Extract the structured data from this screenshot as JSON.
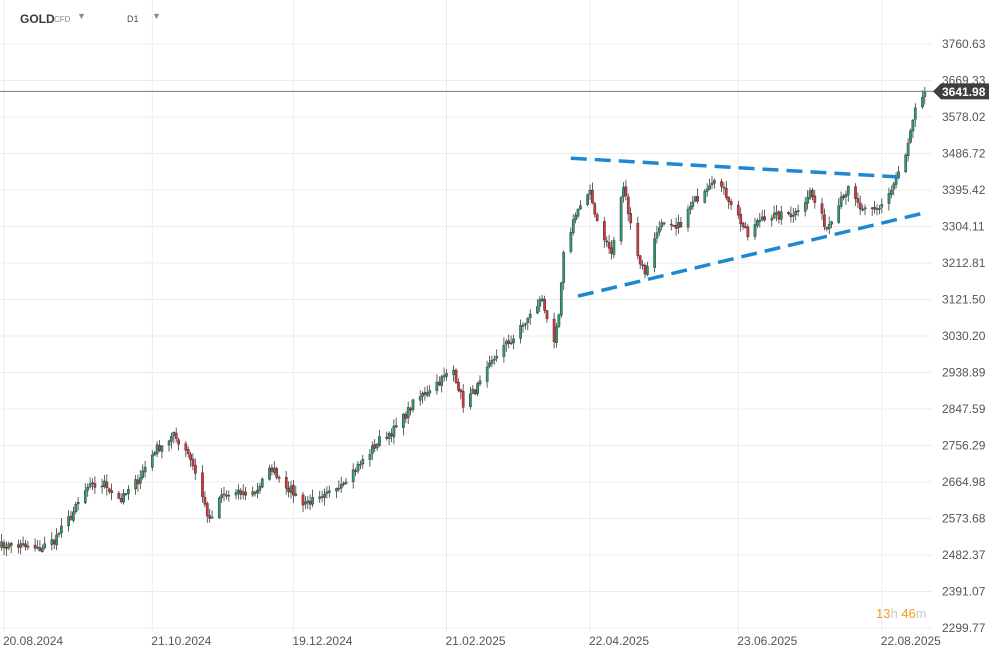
{
  "header": {
    "symbol": "GOLD",
    "symbol_type": "CFD",
    "timeframe": "D1",
    "dropdown_icon": "caret-down-icon"
  },
  "countdown": {
    "hours": "13",
    "h_unit": "h",
    "minutes": "46",
    "m_unit": "m"
  },
  "colors": {
    "up": "#26a269",
    "down": "#e0303a",
    "trendline": "#1e88d0",
    "price_tag": "#3d4043",
    "timer": "#f0a020"
  },
  "chart_data": {
    "type": "candlestick",
    "symbol": "GOLD",
    "timeframe": "D1",
    "current_price": "3641.98",
    "ylim": [
      2299.77,
      3760.63
    ],
    "xlim": [
      "2024-08-20",
      "2025-09-12"
    ],
    "y_ticks": [
      "3760.63",
      "3669.33",
      "3578.02",
      "3486.72",
      "3395.42",
      "3304.11",
      "3212.81",
      "3121.50",
      "3030.20",
      "2938.89",
      "2847.59",
      "2756.29",
      "2664.98",
      "2573.68",
      "2482.37",
      "2391.07",
      "2299.77"
    ],
    "x_ticks": [
      {
        "date": "2024-08-20",
        "label": "20.08.2024"
      },
      {
        "date": "2024-10-21",
        "label": "21.10.2024"
      },
      {
        "date": "2024-12-19",
        "label": "19.12.2024"
      },
      {
        "date": "2025-02-21",
        "label": "21.02.2025"
      },
      {
        "date": "2025-04-22",
        "label": "22.04.2025"
      },
      {
        "date": "2025-06-23",
        "label": "23.06.2025"
      },
      {
        "date": "2025-08-22",
        "label": "22.08.2025"
      }
    ],
    "price_path": [
      [
        "2024-08-16",
        2510
      ],
      [
        "2024-08-20",
        2505
      ],
      [
        "2024-08-27",
        2505
      ],
      [
        "2024-09-03",
        2495
      ],
      [
        "2024-09-10",
        2520
      ],
      [
        "2024-09-17",
        2580
      ],
      [
        "2024-09-24",
        2650
      ],
      [
        "2024-10-01",
        2660
      ],
      [
        "2024-10-08",
        2620
      ],
      [
        "2024-10-15",
        2670
      ],
      [
        "2024-10-22",
        2745
      ],
      [
        "2024-10-30",
        2780
      ],
      [
        "2024-11-05",
        2740
      ],
      [
        "2024-11-08",
        2690
      ],
      [
        "2024-11-14",
        2565
      ],
      [
        "2024-11-19",
        2630
      ],
      [
        "2024-11-26",
        2635
      ],
      [
        "2024-12-03",
        2640
      ],
      [
        "2024-12-10",
        2700
      ],
      [
        "2024-12-17",
        2650
      ],
      [
        "2024-12-23",
        2615
      ],
      [
        "2024-12-31",
        2620
      ],
      [
        "2025-01-08",
        2665
      ],
      [
        "2025-01-16",
        2710
      ],
      [
        "2025-01-24",
        2770
      ],
      [
        "2025-01-31",
        2800
      ],
      [
        "2025-02-07",
        2860
      ],
      [
        "2025-02-14",
        2900
      ],
      [
        "2025-02-24",
        2945
      ],
      [
        "2025-02-28",
        2860
      ],
      [
        "2025-03-07",
        2910
      ],
      [
        "2025-03-14",
        2985
      ],
      [
        "2025-03-21",
        3025
      ],
      [
        "2025-03-28",
        3080
      ],
      [
        "2025-04-02",
        3125
      ],
      [
        "2025-04-07",
        3005
      ],
      [
        "2025-04-09",
        3080
      ],
      [
        "2025-04-11",
        3230
      ],
      [
        "2025-04-16",
        3340
      ],
      [
        "2025-04-22",
        3385
      ],
      [
        "2025-04-25",
        3320
      ],
      [
        "2025-05-01",
        3235
      ],
      [
        "2025-05-06",
        3405
      ],
      [
        "2025-05-12",
        3230
      ],
      [
        "2025-05-15",
        3190
      ],
      [
        "2025-05-21",
        3310
      ],
      [
        "2025-05-28",
        3295
      ],
      [
        "2025-06-05",
        3370
      ],
      [
        "2025-06-13",
        3430
      ],
      [
        "2025-06-20",
        3365
      ],
      [
        "2025-06-27",
        3280
      ],
      [
        "2025-07-03",
        3330
      ],
      [
        "2025-07-10",
        3330
      ],
      [
        "2025-07-17",
        3340
      ],
      [
        "2025-07-23",
        3390
      ],
      [
        "2025-07-30",
        3300
      ],
      [
        "2025-08-05",
        3380
      ],
      [
        "2025-08-08",
        3395
      ],
      [
        "2025-08-14",
        3340
      ],
      [
        "2025-08-20",
        3345
      ],
      [
        "2025-08-26",
        3395
      ],
      [
        "2025-09-01",
        3480
      ],
      [
        "2025-09-05",
        3590
      ],
      [
        "2025-09-09",
        3642
      ]
    ],
    "trendlines": [
      {
        "name": "upper",
        "from": [
          "2025-04-14",
          3475
        ],
        "to": [
          "2025-08-30",
          3428
        ]
      },
      {
        "name": "lower",
        "from": [
          "2025-04-17",
          3130
        ],
        "to": [
          "2025-09-10",
          3340
        ]
      }
    ]
  }
}
